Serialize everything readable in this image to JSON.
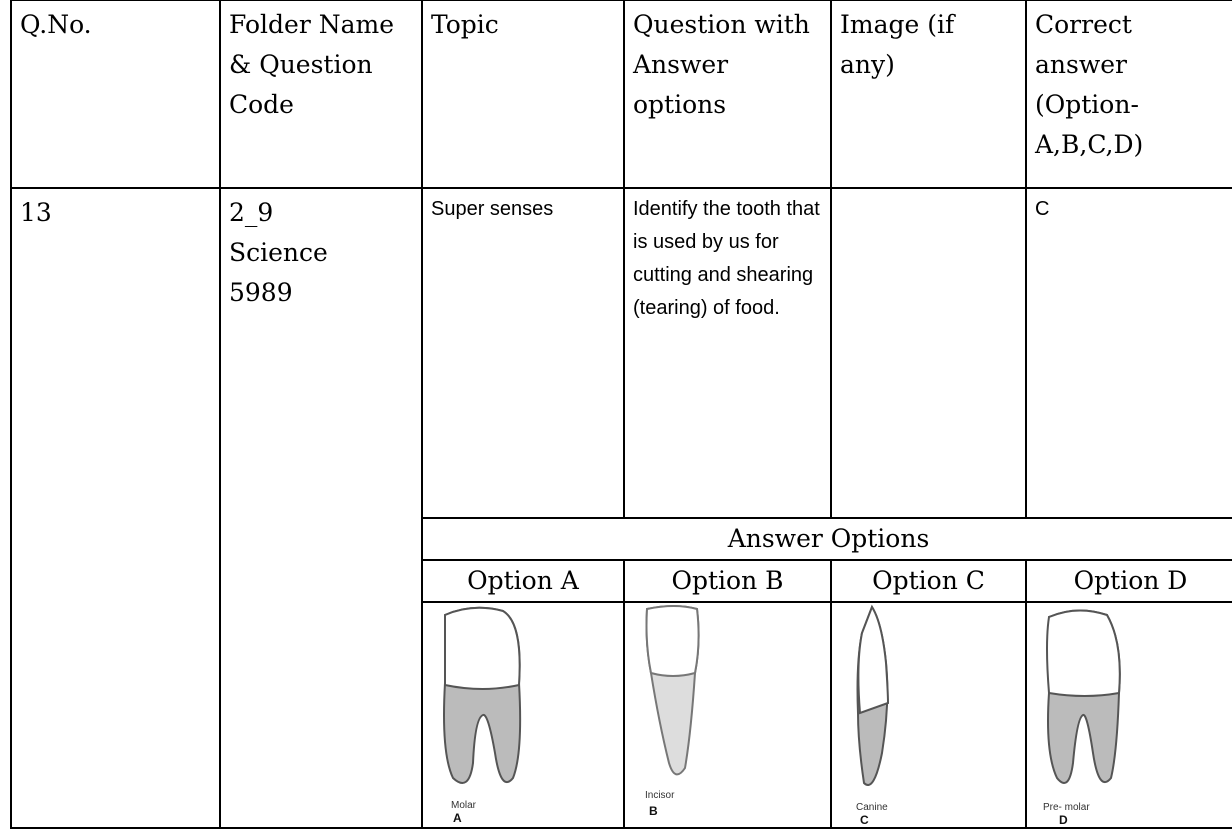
{
  "table": {
    "header": [
      "Q.No.",
      "Folder Name & Question Code",
      "Topic",
      "Question with Answer options",
      "Image (if any)",
      "Correct answer (Option-A,B,C,D)"
    ],
    "row": {
      "q_no": "13",
      "folder": [
        "2_9",
        "Science",
        "5989"
      ],
      "topic": "Super senses",
      "question": "Identify the tooth that is used by us for cutting and shearing (tearing) of food.",
      "correct": "C"
    },
    "answer_options": {
      "title": "Answer Options",
      "options": [
        {
          "label": "Option A",
          "caption": "Molar",
          "letter": "A"
        },
        {
          "label": "Option B",
          "caption": "Incisor",
          "letter": "B"
        },
        {
          "label": "Option C",
          "caption": "Canine",
          "letter": "C"
        },
        {
          "label": "Option D",
          "caption": "Pre- molar",
          "letter": "D"
        }
      ]
    }
  }
}
